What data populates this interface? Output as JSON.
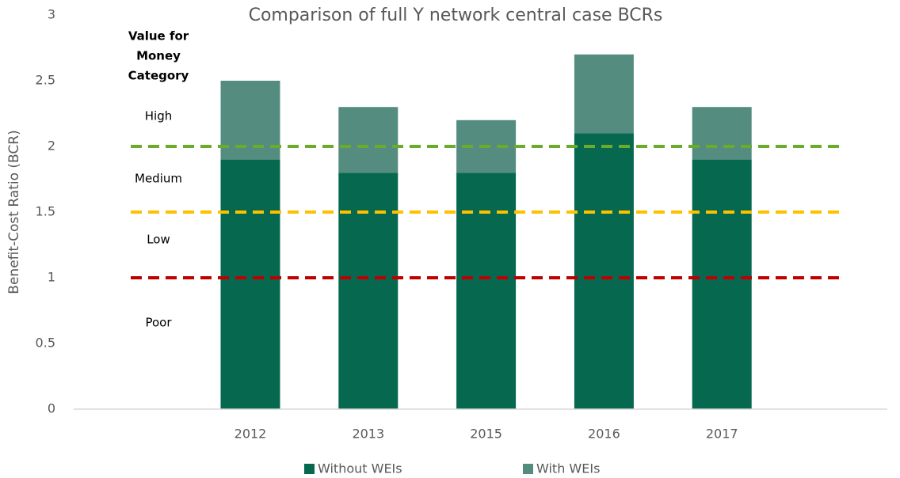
{
  "chart_data": {
    "type": "bar",
    "stacked": true,
    "title": "Comparison of full Y network central case BCRs",
    "y_label": "Benefit-Cost Ratio (BCR)",
    "categories": [
      "2012",
      "2013",
      "2015",
      "2016",
      "2017"
    ],
    "series": [
      {
        "name": "Without WEIs",
        "color": "#05684f",
        "values": [
          1.9,
          1.8,
          1.8,
          2.1,
          1.9
        ]
      },
      {
        "name": "With WEIs",
        "color": "#548c80",
        "values": [
          0.6,
          0.5,
          0.4,
          0.6,
          0.4
        ]
      }
    ],
    "ylim": [
      0,
      3
    ],
    "yticks": [
      0,
      0.5,
      1,
      1.5,
      2,
      2.5,
      3
    ],
    "grid": false,
    "legend": "bottom",
    "reference_lines": [
      {
        "value": 2,
        "color": "#6aab2c"
      },
      {
        "value": 1.5,
        "color": "#ffc000"
      },
      {
        "value": 1,
        "color": "#c00000"
      }
    ],
    "annotations": {
      "heading": [
        "Value for",
        "Money",
        "Category"
      ],
      "bands": [
        "High",
        "Medium",
        "Low",
        "Poor"
      ]
    }
  }
}
